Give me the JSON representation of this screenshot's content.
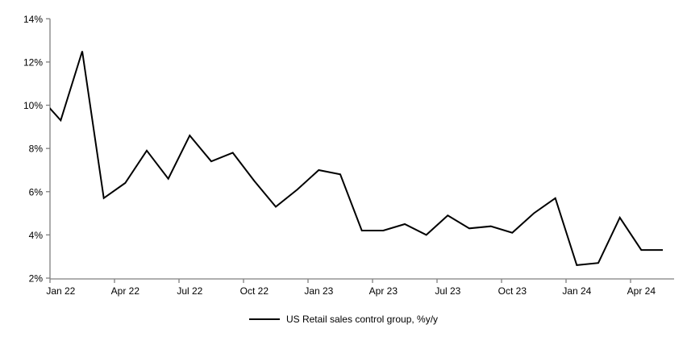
{
  "chart_data": {
    "type": "line",
    "title": "",
    "x": [
      "Dec 21",
      "Jan 22",
      "Feb 22",
      "Mar 22",
      "Apr 22",
      "May 22",
      "Jun 22",
      "Jul 22",
      "Aug 22",
      "Sep 22",
      "Oct 22",
      "Nov 22",
      "Dec 22",
      "Jan 23",
      "Feb 23",
      "Mar 23",
      "Apr 23",
      "May 23",
      "Jun 23",
      "Jul 23",
      "Aug 23",
      "Sep 23",
      "Oct 23",
      "Nov 23",
      "Dec 23",
      "Jan 24",
      "Feb 24",
      "Mar 24",
      "Apr 24",
      "May 24"
    ],
    "series": [
      {
        "name": "US Retail sales control group, %y/y",
        "color": "#000000",
        "values": [
          10.4,
          9.3,
          12.5,
          5.7,
          6.4,
          7.9,
          6.6,
          8.6,
          7.4,
          7.8,
          6.5,
          5.3,
          6.1,
          7.0,
          6.8,
          4.2,
          4.2,
          4.5,
          4.0,
          4.9,
          4.3,
          4.4,
          4.1,
          5.0,
          5.7,
          2.6,
          2.7,
          4.8,
          3.3,
          3.3
        ]
      }
    ],
    "first_point_clipped_at_left_edge": true,
    "ylim": [
      2,
      14
    ],
    "y_tick_step": 2,
    "y_tick_labels": [
      "2%",
      "4%",
      "6%",
      "8%",
      "10%",
      "12%",
      "14%"
    ],
    "x_tick_labels": [
      "Jan 22",
      "Apr 22",
      "Jul 22",
      "Oct 22",
      "Jan 23",
      "Apr 23",
      "Jul 23",
      "Oct 23",
      "Jan 24",
      "Apr 24"
    ],
    "x_ticks_per_label_months": 3,
    "grid": "off",
    "legend_position": "bottom-center",
    "colors": {
      "line": "#000000",
      "axis": "#7f7f7f",
      "text": "#000000",
      "background": "#ffffff"
    }
  }
}
